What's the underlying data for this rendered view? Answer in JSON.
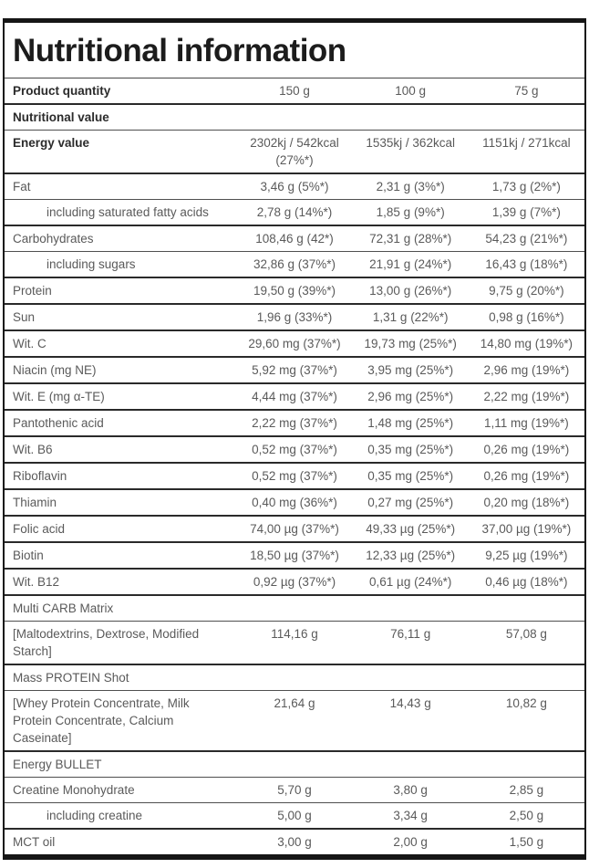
{
  "title": "Nutritional information",
  "table": {
    "header": {
      "label": "Product quantity",
      "quantities": [
        "150 g",
        "100 g",
        "75 g"
      ]
    },
    "rows": [
      {
        "label": "Nutritional value",
        "kind": "section",
        "bold": true,
        "sep": "thick"
      },
      {
        "label": "Energy value",
        "bold": true,
        "sep": "thin",
        "values": [
          "2302kj / 542kcal (27%*)",
          "1535kj / 362kcal",
          "1151kj / 271kcal"
        ]
      },
      {
        "label": "Fat",
        "sep": "thick",
        "values": [
          "3,46 g (5%*)",
          "2,31 g (3%*)",
          "1,73 g (2%*)"
        ]
      },
      {
        "label": "including saturated fatty acids",
        "indent": true,
        "sep": "thin",
        "values": [
          "2,78 g (14%*)",
          "1,85 g (9%*)",
          "1,39 g (7%*)"
        ]
      },
      {
        "label": "Carbohydrates",
        "sep": "thick",
        "values": [
          "108,46 g (42*)",
          "72,31 g (28%*)",
          "54,23 g (21%*)"
        ]
      },
      {
        "label": "including sugars",
        "indent": true,
        "sep": "thin",
        "values": [
          "32,86 g (37%*)",
          "21,91 g (24%*)",
          "16,43 g (18%*)"
        ]
      },
      {
        "label": "Protein",
        "sep": "thick",
        "values": [
          "19,50 g (39%*)",
          "13,00 g (26%*)",
          "9,75 g (20%*)"
        ]
      },
      {
        "label": "Sun",
        "sep": "thick",
        "values": [
          "1,96 g (33%*)",
          "1,31 g (22%*)",
          "0,98 g (16%*)"
        ]
      },
      {
        "label": "Wit. C",
        "sep": "thick",
        "values": [
          "29,60 mg (37%*)",
          "19,73 mg (25%*)",
          "14,80 mg (19%*)"
        ]
      },
      {
        "label": "Niacin (mg NE)",
        "sep": "thick",
        "values": [
          "5,92 mg (37%*)",
          "3,95 mg (25%*)",
          "2,96 mg (19%*)"
        ]
      },
      {
        "label": "Wit. E (mg α-TE)",
        "sep": "thick",
        "values": [
          "4,44 mg (37%*)",
          "2,96 mg (25%*)",
          "2,22 mg (19%*)"
        ]
      },
      {
        "label": "Pantothenic acid",
        "sep": "thick",
        "values": [
          "2,22 mg (37%*)",
          "1,48 mg (25%*)",
          "1,11 mg (19%*)"
        ]
      },
      {
        "label": "Wit. B6",
        "sep": "thick",
        "values": [
          "0,52 mg (37%*)",
          "0,35 mg (25%*)",
          "0,26 mg (19%*)"
        ]
      },
      {
        "label": "Riboflavin",
        "sep": "thick",
        "values": [
          "0,52 mg (37%*)",
          "0,35 mg (25%*)",
          "0,26 mg (19%*)"
        ]
      },
      {
        "label": "Thiamin",
        "sep": "thick",
        "values": [
          "0,40 mg (36%*)",
          "0,27 mg (25%*)",
          "0,20 mg (18%*)"
        ]
      },
      {
        "label": "Folic acid",
        "sep": "thick",
        "values": [
          "74,00 µg (37%*)",
          "49,33 µg (25%*)",
          "37,00 µg (19%*)"
        ]
      },
      {
        "label": "Biotin",
        "sep": "thick",
        "values": [
          "18,50 µg (37%*)",
          "12,33 µg (25%*)",
          "9,25 µg (19%*)"
        ]
      },
      {
        "label": "Wit. B12",
        "sep": "thick",
        "values": [
          "0,92 µg (37%*)",
          "0,61 µg (24%*)",
          "0,46 µg (18%*)"
        ]
      },
      {
        "label": "Multi CARB Matrix",
        "kind": "section",
        "sep": "thick"
      },
      {
        "label": "[Maltodextrins, Dextrose, Modified Starch]",
        "sep": "thin",
        "values": [
          "114,16 g",
          "76,11 g",
          "57,08 g"
        ]
      },
      {
        "label": "Mass PROTEIN Shot",
        "kind": "section",
        "sep": "thick"
      },
      {
        "label": "[Whey Protein Concentrate, Milk Protein Concentrate, Calcium Caseinate]",
        "sep": "thin",
        "values": [
          "21,64 g",
          "14,43 g",
          "10,82 g"
        ]
      },
      {
        "label": "Energy BULLET",
        "kind": "section",
        "sep": "thick"
      },
      {
        "label": "Creatine Monohydrate",
        "sep": "thin",
        "values": [
          "5,70 g",
          "3,80 g",
          "2,85 g"
        ]
      },
      {
        "label": "including creatine",
        "indent": true,
        "sep": "thin",
        "values": [
          "5,00 g",
          "3,34 g",
          "2,50 g"
        ]
      },
      {
        "label": "MCT oil",
        "sep": "thick",
        "values": [
          "3,00 g",
          "2,00 g",
          "1,50 g"
        ]
      }
    ]
  },
  "colors": {
    "frame": "#161616",
    "separator_thick": "#2a2a2a",
    "separator_thin": "#4f4f4f",
    "text": "#5a5a5a",
    "text_strong": "#2b2b2b",
    "title_text": "#1c1c1c",
    "background": "#ffffff"
  }
}
